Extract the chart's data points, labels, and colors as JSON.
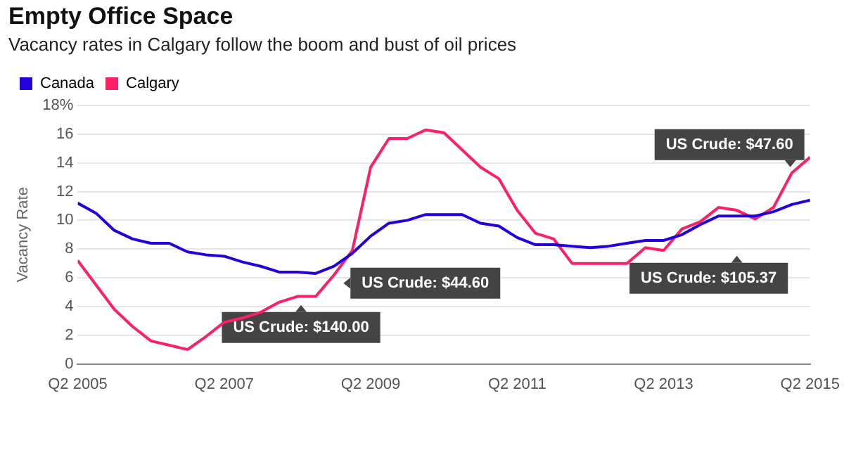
{
  "chart_data": {
    "type": "line",
    "title": "Empty Office Space",
    "subtitle": "Vacancy rates in Calgary follow the boom and bust of oil prices",
    "ylabel": "Vacancy Rate",
    "categories": [
      "Q2 2005",
      null,
      null,
      null,
      null,
      null,
      null,
      null,
      "Q2 2007",
      null,
      null,
      null,
      null,
      null,
      null,
      null,
      "Q2 2009",
      null,
      null,
      null,
      null,
      null,
      null,
      null,
      "Q2 2011",
      null,
      null,
      null,
      null,
      null,
      null,
      null,
      "Q2 2013",
      null,
      null,
      null,
      null,
      null,
      null,
      null,
      "Q2 2015"
    ],
    "series": [
      {
        "name": "Canada",
        "color": "#2200dd",
        "values": [
          11.2,
          10.5,
          9.3,
          8.7,
          8.4,
          8.4,
          7.8,
          7.6,
          7.5,
          7.1,
          6.8,
          6.4,
          6.4,
          6.3,
          6.8,
          7.7,
          8.9,
          9.8,
          10.0,
          10.4,
          10.4,
          10.4,
          9.8,
          9.6,
          8.8,
          8.3,
          8.3,
          8.2,
          8.1,
          8.2,
          8.4,
          8.6,
          8.6,
          9.0,
          9.7,
          10.3,
          10.3,
          10.3,
          10.6,
          11.1,
          11.4
        ]
      },
      {
        "name": "Calgary",
        "color": "#ff1f66",
        "values": [
          7.2,
          5.5,
          3.8,
          2.6,
          1.6,
          1.3,
          1.0,
          1.9,
          2.9,
          3.2,
          3.6,
          4.3,
          4.7,
          4.7,
          6.2,
          7.9,
          13.7,
          15.7,
          15.7,
          16.3,
          16.1,
          14.9,
          13.7,
          12.9,
          10.7,
          9.1,
          8.7,
          7.0,
          7.0,
          7.0,
          7.0,
          8.1,
          7.9,
          9.4,
          9.9,
          10.9,
          10.7,
          10.1,
          10.9,
          13.3,
          14.4
        ]
      }
    ],
    "ylim": [
      0,
      18
    ],
    "yticks": [
      0,
      2,
      4,
      6,
      8,
      10,
      12,
      14,
      16,
      {
        "value": 18,
        "label": "18%"
      }
    ],
    "grid": "y",
    "legend": "top left",
    "marker": "none",
    "line_style": "solid",
    "annotations": [
      "US Crude: $140.00",
      "US Crude: $44.60",
      "US Crude: $105.37",
      "US Crude: $47.60"
    ]
  }
}
